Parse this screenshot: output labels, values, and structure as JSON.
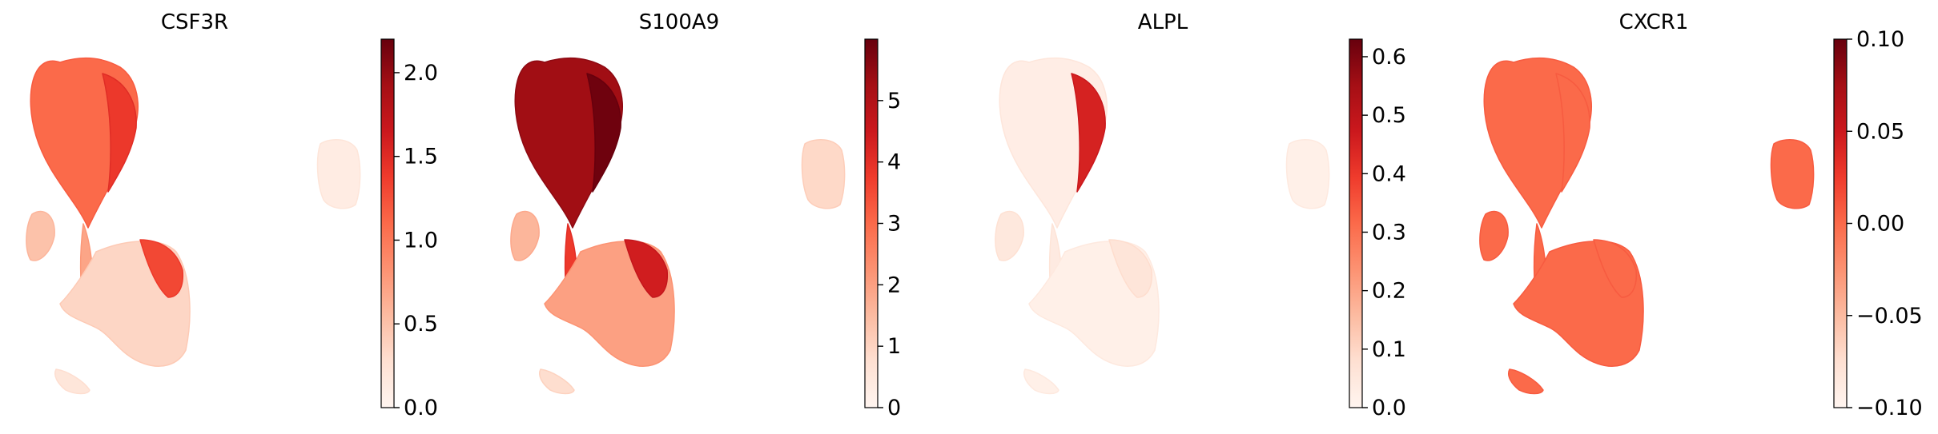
{
  "colors": {
    "reds_scale": [
      "#fff5f0",
      "#fee0d2",
      "#fcbba1",
      "#fc9272",
      "#fb6a4a",
      "#ef3b2c",
      "#cb181d",
      "#a50f15",
      "#67000d"
    ],
    "uniform_cxcr1": "#fb6b4b",
    "axis": "#000000"
  },
  "chart_data": [
    {
      "type": "scatter",
      "title": "CSF3R",
      "colorbar": {
        "ticks": [
          "0.0",
          "0.5",
          "1.0",
          "1.5",
          "2.0"
        ],
        "range": [
          0.0,
          2.2
        ]
      },
      "expression_by_region": {
        "top_lobe": 1.1,
        "top_lobe_edge": 1.4,
        "left_arm": 0.5,
        "stem": 0.7,
        "lower_cluster": 0.35,
        "lower_cluster_peak": 1.3,
        "small_island": 0.12,
        "tail": 0.2
      }
    },
    {
      "type": "scatter",
      "title": "S100A9",
      "colorbar": {
        "ticks": [
          "0",
          "1",
          "2",
          "3",
          "4",
          "5"
        ],
        "range": [
          0,
          6.0
        ]
      },
      "expression_by_region": {
        "top_lobe": 5.3,
        "top_lobe_edge": 5.9,
        "left_arm": 1.6,
        "stem": 3.8,
        "lower_cluster": 2.0,
        "lower_cluster_peak": 4.4,
        "small_island": 0.9,
        "tail": 0.8
      }
    },
    {
      "type": "scatter",
      "title": "ALPL",
      "colorbar": {
        "ticks": [
          "0.0",
          "0.1",
          "0.2",
          "0.3",
          "0.4",
          "0.5",
          "0.6"
        ],
        "range": [
          0.0,
          0.63
        ]
      },
      "expression_by_region": {
        "top_lobe": 0.03,
        "top_lobe_edge": 0.45,
        "left_arm": 0.05,
        "stem": 0.04,
        "lower_cluster": 0.02,
        "lower_cluster_peak": 0.06,
        "small_island": 0.02,
        "tail": 0.02
      }
    },
    {
      "type": "scatter",
      "title": "CXCR1",
      "colorbar": {
        "ticks": [
          "−0.10",
          "−0.05",
          "0.00",
          "0.05",
          "0.10"
        ],
        "range": [
          -0.1,
          0.1
        ]
      },
      "expression_by_region": {
        "top_lobe": 0.0,
        "top_lobe_edge": 0.0,
        "left_arm": 0.0,
        "stem": 0.0,
        "lower_cluster": 0.0,
        "lower_cluster_peak": 0.0,
        "small_island": 0.0,
        "tail": 0.0
      }
    }
  ]
}
